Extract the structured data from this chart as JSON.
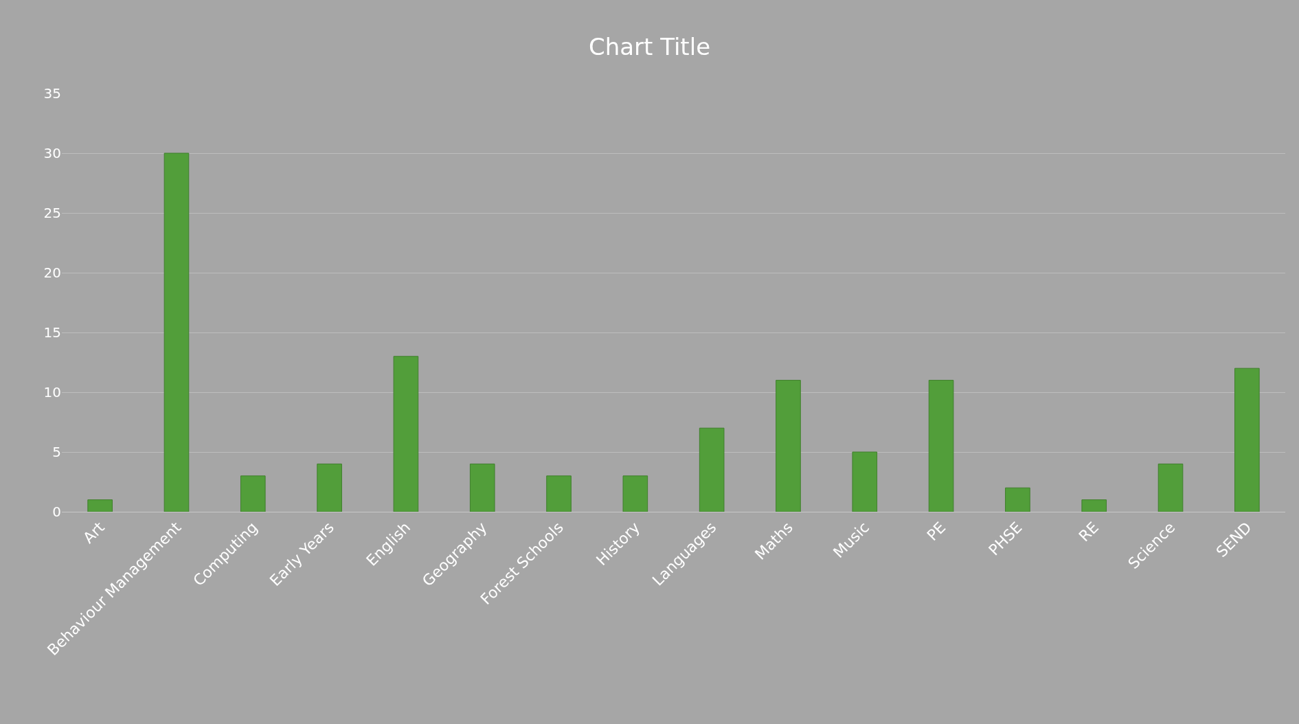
{
  "chart_data": {
    "type": "bar",
    "title": "Chart Title",
    "categories": [
      "Art",
      "Behaviour Management",
      "Computing",
      "Early Years",
      "English",
      "Geography",
      "Forest Schools",
      "History",
      "Languages",
      "Maths",
      "Music",
      "PE",
      "PHSE",
      "RE",
      "Science",
      "SEND"
    ],
    "values": [
      1,
      30,
      3,
      4,
      13,
      4,
      3,
      3,
      7,
      11,
      5,
      11,
      2,
      1,
      4,
      12
    ],
    "color": "#529e3a",
    "ylim": [
      0,
      35
    ],
    "yticks": [
      0,
      5,
      10,
      15,
      20,
      25,
      30,
      35
    ],
    "grid": "y"
  }
}
